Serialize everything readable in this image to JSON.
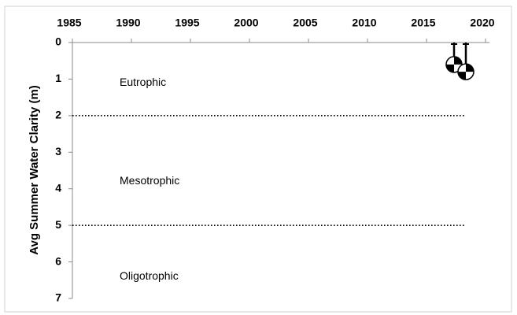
{
  "chart_data": {
    "type": "scatter",
    "y_label": "Avg Summer Water Clarity (m)",
    "x": [
      2017,
      2018
    ],
    "values": [
      0.6,
      0.8
    ],
    "xlim": [
      1985,
      2020
    ],
    "xticks": [
      1985,
      1990,
      1995,
      2000,
      2005,
      2010,
      2015,
      2020
    ],
    "ylim": [
      0,
      7
    ],
    "yticks": [
      0,
      1,
      2,
      3,
      4,
      5,
      6,
      7
    ],
    "y_inverted": true,
    "thresholds": [
      2,
      5
    ],
    "annotations": [
      {
        "text": "Eutrophic",
        "x": 1989,
        "y": 1.1
      },
      {
        "text": "Mesotrophic",
        "x": 1989,
        "y": 3.8
      },
      {
        "text": "Oligotrophic",
        "x": 1989,
        "y": 6.4
      }
    ],
    "grid": false
  }
}
